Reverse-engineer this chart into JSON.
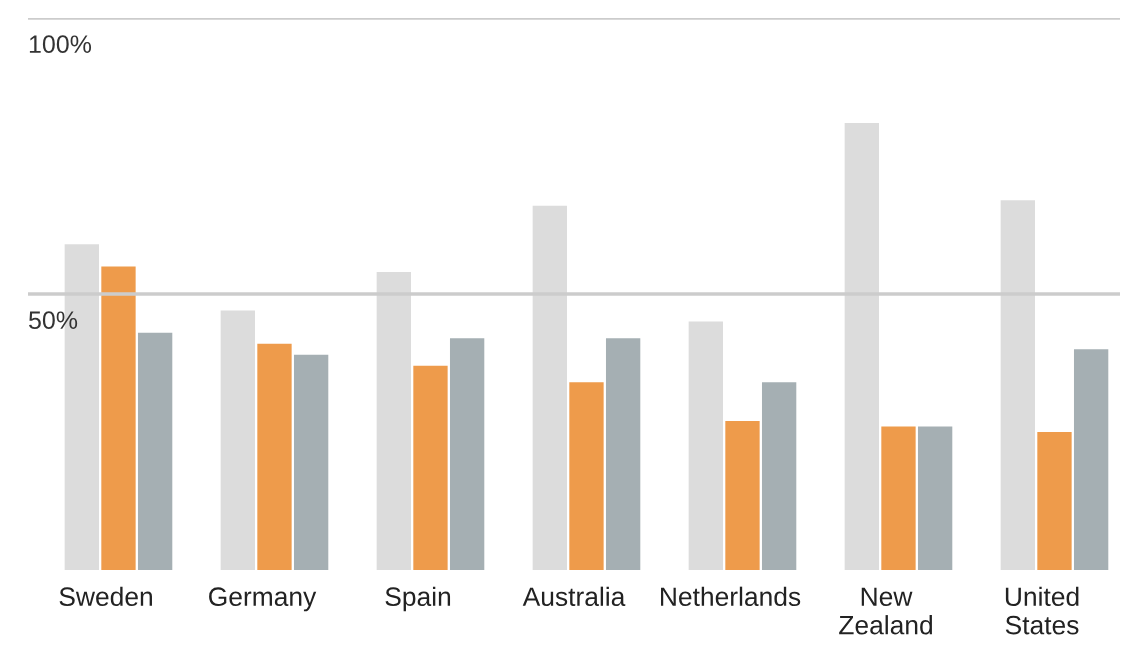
{
  "chart_data": {
    "type": "bar",
    "categories": [
      "Sweden",
      "Germany",
      "Spain",
      "Australia",
      "Netherlands",
      "New Zealand",
      "United States"
    ],
    "series": [
      {
        "color": "#dcdcdc",
        "values": [
          59,
          47,
          54,
          66,
          45,
          81,
          67
        ]
      },
      {
        "color": "#ee9b4b",
        "values": [
          55,
          41,
          37,
          34,
          27,
          26,
          25
        ]
      },
      {
        "color": "#a5afb3",
        "values": [
          43,
          39,
          42,
          42,
          34,
          26,
          40
        ]
      }
    ],
    "ylim": [
      0,
      100
    ],
    "yticks": [
      {
        "value": 50,
        "label": "50%"
      },
      {
        "value": 100,
        "label": "100%"
      }
    ],
    "grid": "y",
    "legend": false
  }
}
